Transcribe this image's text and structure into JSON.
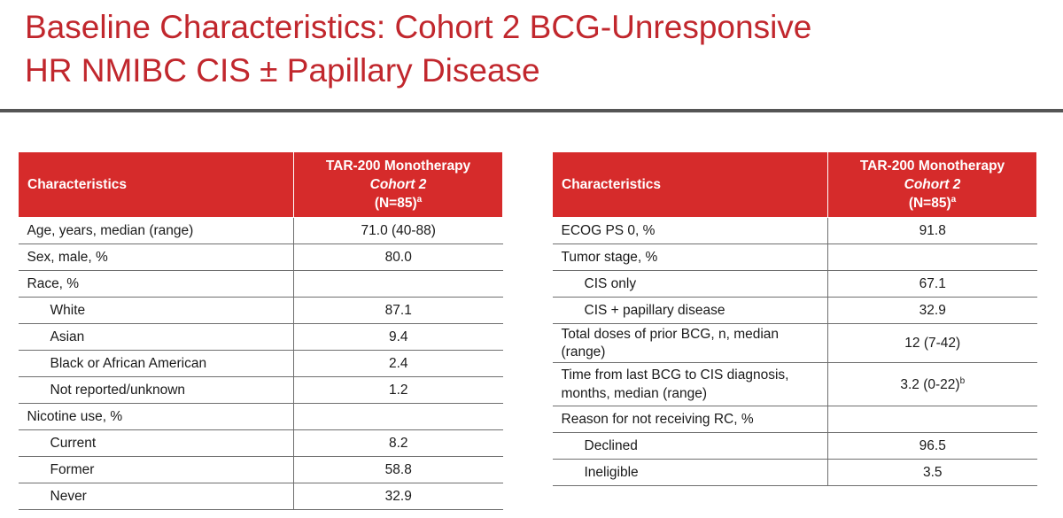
{
  "title": {
    "line1": "Baseline Characteristics: Cohort 2 BCG-Unresponsive",
    "line2": "HR NMIBC CIS ± Papillary Disease"
  },
  "colors": {
    "title": "#c1272d",
    "header_bg": "#d62b2b",
    "rule": "#555555"
  },
  "left_table": {
    "header": {
      "col1": "Characteristics",
      "col2_line1": "TAR-200 Monotherapy",
      "col2_line2": "Cohort 2",
      "col2_line3": "(N=85)",
      "col2_sup": "a"
    },
    "rows": [
      {
        "label": "Age, years, median (range)",
        "value": "71.0 (40-88)"
      },
      {
        "label": "Sex, male, %",
        "value": "80.0"
      },
      {
        "label": "Race, %",
        "value": ""
      },
      {
        "label": "White",
        "value": "87.1"
      },
      {
        "label": "Asian",
        "value": "9.4"
      },
      {
        "label": "Black or African American",
        "value": "2.4"
      },
      {
        "label": "Not reported/unknown",
        "value": "1.2"
      },
      {
        "label": "Nicotine use, %",
        "value": ""
      },
      {
        "label": "Current",
        "value": "8.2"
      },
      {
        "label": "Former",
        "value": "58.8"
      },
      {
        "label": "Never",
        "value": "32.9"
      }
    ]
  },
  "right_table": {
    "header": {
      "col1": "Characteristics",
      "col2_line1": "TAR-200 Monotherapy",
      "col2_line2": "Cohort 2",
      "col2_line3": "(N=85)",
      "col2_sup": "a"
    },
    "rows": [
      {
        "label": "ECOG PS 0, %",
        "value": "91.8"
      },
      {
        "label": "Tumor stage, %",
        "value": ""
      },
      {
        "label": "CIS only",
        "value": "67.1"
      },
      {
        "label": "CIS + papillary disease",
        "value": "32.9"
      },
      {
        "label": "Total doses of prior BCG, n, median (range)",
        "value": "12 (7-42)"
      },
      {
        "label": "Time from last BCG to CIS diagnosis, months, median (range)",
        "value": "3.2 (0-22)",
        "value_sup": "b"
      },
      {
        "label": "Reason for not receiving RC, %",
        "value": ""
      },
      {
        "label": "Declined",
        "value": "96.5"
      },
      {
        "label": "Ineligible",
        "value": "3.5"
      }
    ]
  }
}
